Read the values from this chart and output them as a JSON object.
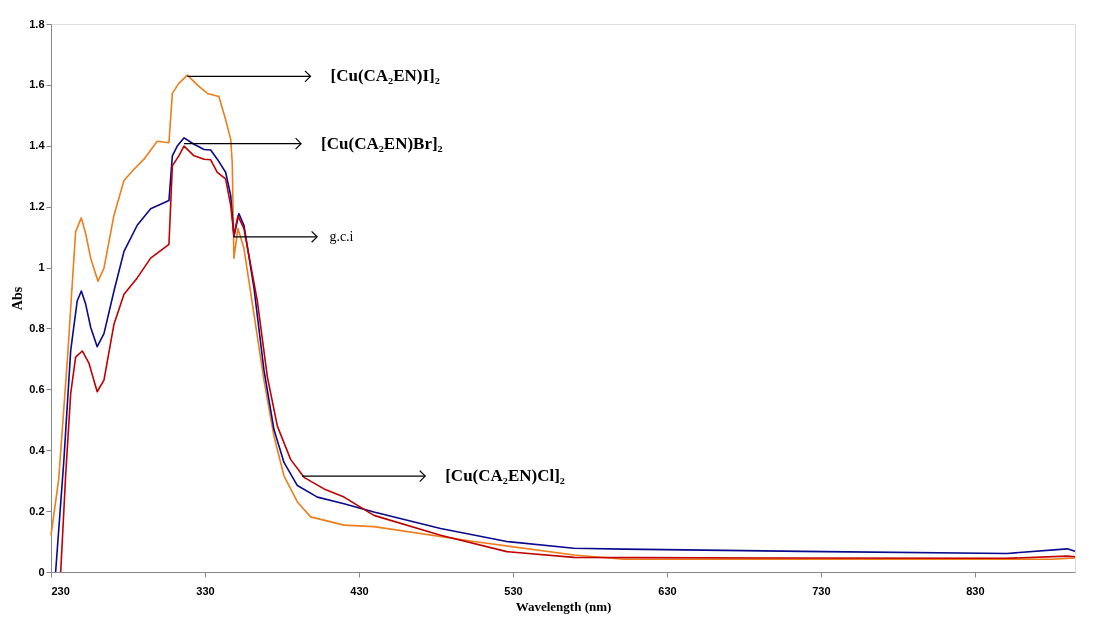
{
  "chart_data": {
    "type": "line",
    "xlabel": "Wavelength (nm)",
    "ylabel": "Abs",
    "xlim": [
      230,
      895
    ],
    "xticks": [
      230,
      330,
      430,
      530,
      630,
      730,
      830
    ],
    "ylim": [
      0,
      1.8
    ],
    "yticks": [
      0,
      0.2,
      0.4,
      0.6,
      0.8,
      1,
      1.2,
      1.4,
      1.6,
      1.8
    ],
    "grid": false,
    "marker": "none",
    "line_style": "solid",
    "series": [
      {
        "color": "#ee7d1a",
        "x": [
          230,
          235,
          240.6,
          246,
          249.7,
          252.5,
          255.8,
          260.5,
          264.4,
          270.9,
          277.4,
          283.9,
          290.4,
          299,
          306.6,
          308.8,
          313,
          318.5,
          325,
          331.5,
          339,
          343.4,
          346.7,
          347.7,
          348.8,
          351.4,
          355.3,
          361.8,
          368.3,
          374.8,
          381.3,
          390,
          398.6,
          420.3,
          439.7,
          504.7,
          569.6,
          602,
          700,
          800,
          880,
          895
        ],
        "values": [
          0.12,
          0.305,
          0.695,
          1.118,
          1.163,
          1.112,
          1.03,
          0.955,
          0.998,
          1.172,
          1.286,
          1.323,
          1.356,
          1.415,
          1.41,
          1.572,
          1.605,
          1.632,
          1.6,
          1.572,
          1.562,
          1.486,
          1.421,
          1.345,
          1.031,
          1.128,
          1.063,
          0.847,
          0.63,
          0.446,
          0.316,
          0.23,
          0.181,
          0.154,
          0.149,
          0.1,
          0.056,
          0.042,
          0.042,
          0.042,
          0.042,
          0.046
        ]
      },
      {
        "color": "#0a0a8c",
        "x": [
          233,
          238.4,
          242.8,
          247,
          249.7,
          252.5,
          255.8,
          260,
          264.4,
          270.9,
          277.4,
          286,
          294.7,
          306.6,
          308.8,
          312,
          316.4,
          322.9,
          329.4,
          333.7,
          338,
          343.4,
          346.7,
          348.8,
          352,
          355.3,
          361.8,
          368.3,
          374.8,
          381.3,
          390,
          403,
          420.3,
          439.7,
          483,
          526,
          569.6,
          602,
          732,
          851,
          890,
          895
        ],
        "values": [
          0,
          0.37,
          0.728,
          0.89,
          0.923,
          0.88,
          0.803,
          0.74,
          0.783,
          0.923,
          1.053,
          1.139,
          1.193,
          1.22,
          1.367,
          1.399,
          1.426,
          1.405,
          1.388,
          1.386,
          1.356,
          1.313,
          1.237,
          1.101,
          1.177,
          1.139,
          0.933,
          0.663,
          0.468,
          0.36,
          0.284,
          0.246,
          0.224,
          0.197,
          0.143,
          0.1,
          0.078,
          0.075,
          0.067,
          0.061,
          0.076,
          0.068
        ]
      },
      {
        "color": "#c00000",
        "x": [
          236.3,
          239.5,
          242.8,
          246,
          250.3,
          254.7,
          260,
          264.4,
          270.9,
          277.4,
          286,
          294.7,
          306.6,
          308.8,
          313,
          316.4,
          322.9,
          329.4,
          333.7,
          338,
          343.4,
          346.7,
          348.8,
          351.4,
          355.3,
          364,
          370.5,
          377,
          385.6,
          394.3,
          407.3,
          420.3,
          439.7,
          483,
          526,
          569.6,
          700,
          850,
          890,
          895
        ],
        "values": [
          0,
          0.316,
          0.587,
          0.706,
          0.726,
          0.685,
          0.592,
          0.63,
          0.814,
          0.912,
          0.966,
          1.031,
          1.076,
          1.334,
          1.367,
          1.399,
          1.367,
          1.356,
          1.354,
          1.313,
          1.291,
          1.204,
          1.107,
          1.17,
          1.128,
          0.89,
          0.641,
          0.479,
          0.37,
          0.311,
          0.273,
          0.246,
          0.186,
          0.121,
          0.067,
          0.048,
          0.046,
          0.045,
          0.052,
          0.05
        ]
      }
    ],
    "annotations": [
      {
        "text": "[Cu(CA₂EN)I]₂",
        "x": 318.5,
        "y": 1.628
      },
      {
        "text": "[Cu(CA₂EN)Br]₂",
        "x": 316.4,
        "y": 1.407
      },
      {
        "text": "g.c.i",
        "x": 348.8,
        "y": 1.101
      },
      {
        "text": "[Cu(CA₂EN)Cl]₂",
        "x": 393,
        "y": 0.315
      }
    ]
  }
}
